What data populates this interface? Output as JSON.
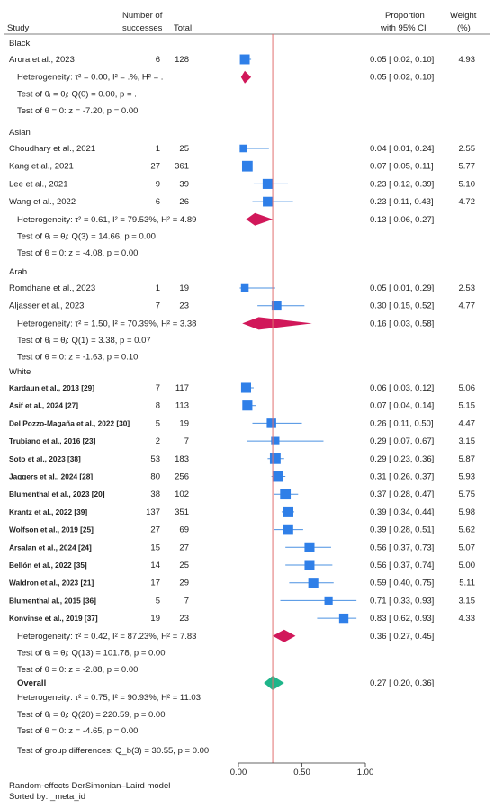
{
  "header": {
    "study": "Study",
    "successes_line1": "Number of",
    "successes_line2": "successes",
    "total": "Total",
    "ci_line1": "Proportion",
    "ci_line2": "with 95% CI",
    "weight_line1": "Weight",
    "weight_line2": "(%)"
  },
  "footer": {
    "model": "Random-effects DerSimonian–Laird model",
    "sorted": "Sorted by: _meta_id"
  },
  "colors": {
    "study_marker": "#2f7fe8",
    "subgroup_diamond": "#d1185a",
    "overall_diamond": "#1fb58a",
    "reference_line": "#e07070",
    "ci_line": "#4a90e2"
  },
  "chart_data": {
    "type": "forest",
    "xlim": [
      0,
      1
    ],
    "xticks": [
      "0.00",
      "0.50",
      "1.00"
    ],
    "reference_value": 0.27,
    "groups": [
      {
        "name": "Black",
        "studies": [
          {
            "label": "Arora et al., 2023",
            "bold": false,
            "successes": "6",
            "total": "128",
            "est": 0.05,
            "lo": 0.02,
            "hi": 0.1,
            "ci_text": "0.05 [ 0.02, 0.10]",
            "weight": "4.93"
          }
        ],
        "pooled": {
          "est": 0.05,
          "lo": 0.02,
          "hi": 0.1,
          "ci_text": "0.05 [ 0.02, 0.10]"
        },
        "heterogeneity": "Heterogeneity: τ² = 0.00, I² = .%, H² = .",
        "test1": "Test of θᵢ = θⱼ: Q(0) = 0.00, p = .",
        "test2": "Test of θ = 0: z = -7.20, p = 0.00"
      },
      {
        "name": "Asian",
        "studies": [
          {
            "label": "Choudhary et al., 2021",
            "bold": false,
            "successes": "1",
            "total": "25",
            "est": 0.04,
            "lo": 0.01,
            "hi": 0.24,
            "ci_text": "0.04 [ 0.01, 0.24]",
            "weight": "2.55"
          },
          {
            "label": "Kang et al., 2021",
            "bold": false,
            "successes": "27",
            "total": "361",
            "est": 0.07,
            "lo": 0.05,
            "hi": 0.11,
            "ci_text": "0.07 [ 0.05, 0.11]",
            "weight": "5.77"
          },
          {
            "label": "Lee et al., 2021",
            "bold": false,
            "successes": "9",
            "total": "39",
            "est": 0.23,
            "lo": 0.12,
            "hi": 0.39,
            "ci_text": "0.23 [ 0.12, 0.39]",
            "weight": "5.10"
          },
          {
            "label": "Wang et al., 2022",
            "bold": false,
            "successes": "6",
            "total": "26",
            "est": 0.23,
            "lo": 0.11,
            "hi": 0.43,
            "ci_text": "0.23 [ 0.11, 0.43]",
            "weight": "4.72"
          }
        ],
        "pooled": {
          "est": 0.13,
          "lo": 0.06,
          "hi": 0.27,
          "ci_text": "0.13 [ 0.06, 0.27]"
        },
        "heterogeneity": "Heterogeneity: τ² = 0.61, I² = 79.53%, H² = 4.89",
        "test1": "Test of θᵢ = θⱼ: Q(3) = 14.66, p = 0.00",
        "test2": "Test of θ = 0: z = -4.08, p = 0.00"
      },
      {
        "name": "Arab",
        "studies": [
          {
            "label": "Romdhane et al., 2023",
            "bold": false,
            "successes": "1",
            "total": "19",
            "est": 0.05,
            "lo": 0.01,
            "hi": 0.29,
            "ci_text": "0.05 [ 0.01, 0.29]",
            "weight": "2.53"
          },
          {
            "label": "Aljasser et al., 2023",
            "bold": false,
            "successes": "7",
            "total": "23",
            "est": 0.3,
            "lo": 0.15,
            "hi": 0.52,
            "ci_text": "0.30 [ 0.15, 0.52]",
            "weight": "4.77"
          }
        ],
        "pooled": {
          "est": 0.16,
          "lo": 0.03,
          "hi": 0.58,
          "ci_text": "0.16 [ 0.03, 0.58]"
        },
        "heterogeneity": "Heterogeneity: τ² = 1.50, I² = 70.39%, H² = 3.38",
        "test1": "Test of θᵢ = θⱼ: Q(1) = 3.38, p = 0.07",
        "test2": "Test of θ = 0: z = -1.63, p = 0.10"
      },
      {
        "name": "White",
        "studies": [
          {
            "label": "Kardaun et al., 2013 [29]",
            "bold": true,
            "successes": "7",
            "total": "117",
            "est": 0.06,
            "lo": 0.03,
            "hi": 0.12,
            "ci_text": "0.06 [ 0.03, 0.12]",
            "weight": "5.06"
          },
          {
            "label": "Asif et al., 2024 [27]",
            "bold": true,
            "successes": "8",
            "total": "113",
            "est": 0.07,
            "lo": 0.04,
            "hi": 0.14,
            "ci_text": "0.07 [ 0.04, 0.14]",
            "weight": "5.15"
          },
          {
            "label": "Del Pozzo-Magaña et al., 2022 [30]",
            "bold": true,
            "successes": "5",
            "total": "19",
            "est": 0.26,
            "lo": 0.11,
            "hi": 0.5,
            "ci_text": "0.26 [ 0.11, 0.50]",
            "weight": "4.47"
          },
          {
            "label": "Trubiano et al., 2016 [23]",
            "bold": true,
            "successes": "2",
            "total": "7",
            "est": 0.29,
            "lo": 0.07,
            "hi": 0.67,
            "ci_text": "0.29 [ 0.07, 0.67]",
            "weight": "3.15"
          },
          {
            "label": "Soto et al., 2023 [38]",
            "bold": true,
            "successes": "53",
            "total": "183",
            "est": 0.29,
            "lo": 0.23,
            "hi": 0.36,
            "ci_text": "0.29 [ 0.23, 0.36]",
            "weight": "5.87"
          },
          {
            "label": "Jaggers et al., 2024 [28]",
            "bold": true,
            "successes": "80",
            "total": "256",
            "est": 0.31,
            "lo": 0.26,
            "hi": 0.37,
            "ci_text": "0.31 [ 0.26, 0.37]",
            "weight": "5.93"
          },
          {
            "label": "Blumenthal et al., 2023 [20]",
            "bold": true,
            "successes": "38",
            "total": "102",
            "est": 0.37,
            "lo": 0.28,
            "hi": 0.47,
            "ci_text": "0.37 [ 0.28, 0.47]",
            "weight": "5.75"
          },
          {
            "label": "Krantz et al., 2022 [39]",
            "bold": true,
            "successes": "137",
            "total": "351",
            "est": 0.39,
            "lo": 0.34,
            "hi": 0.44,
            "ci_text": "0.39 [ 0.34, 0.44]",
            "weight": "5.98"
          },
          {
            "label": "Wolfson et al., 2019 [25]",
            "bold": true,
            "successes": "27",
            "total": "69",
            "est": 0.39,
            "lo": 0.28,
            "hi": 0.51,
            "ci_text": "0.39 [ 0.28, 0.51]",
            "weight": "5.62"
          },
          {
            "label": "Arsalan et al., 2024 [24]",
            "bold": true,
            "successes": "15",
            "total": "27",
            "est": 0.56,
            "lo": 0.37,
            "hi": 0.73,
            "ci_text": "0.56 [ 0.37, 0.73]",
            "weight": "5.07"
          },
          {
            "label": "Bellón et al., 2022 [35]",
            "bold": true,
            "successes": "14",
            "total": "25",
            "est": 0.56,
            "lo": 0.37,
            "hi": 0.74,
            "ci_text": "0.56 [ 0.37, 0.74]",
            "weight": "5.00"
          },
          {
            "label": "Waldron et al., 2023 [21]",
            "bold": true,
            "successes": "17",
            "total": "29",
            "est": 0.59,
            "lo": 0.4,
            "hi": 0.75,
            "ci_text": "0.59 [ 0.40, 0.75]",
            "weight": "5.11"
          },
          {
            "label": "Blumenthal al., 2015 [36]",
            "bold": true,
            "successes": "5",
            "total": "7",
            "est": 0.71,
            "lo": 0.33,
            "hi": 0.93,
            "ci_text": "0.71 [ 0.33, 0.93]",
            "weight": "3.15"
          },
          {
            "label": "Konvinse et al., 2019 [37]",
            "bold": true,
            "successes": "19",
            "total": "23",
            "est": 0.83,
            "lo": 0.62,
            "hi": 0.93,
            "ci_text": "0.83 [ 0.62, 0.93]",
            "weight": "4.33"
          }
        ],
        "pooled": {
          "est": 0.36,
          "lo": 0.27,
          "hi": 0.45,
          "ci_text": "0.36 [ 0.27, 0.45]"
        },
        "heterogeneity": "Heterogeneity: τ² = 0.42, I² = 87.23%, H² = 7.83",
        "test1": "Test of θᵢ = θⱼ: Q(13) = 101.78, p = 0.00",
        "test2": "Test of θ = 0: z = -2.88, p = 0.00"
      }
    ],
    "overall": {
      "label": "Overall",
      "est": 0.27,
      "lo": 0.2,
      "hi": 0.36,
      "ci_text": "0.27 [ 0.20, 0.36]",
      "heterogeneity": "Heterogeneity: τ² = 0.75, I² = 90.93%, H² = 11.03",
      "test1": "Test of θᵢ = θⱼ: Q(20) = 220.59, p = 0.00",
      "test2": "Test of θ = 0: z = -4.65, p = 0.00",
      "group_diff": "Test of group differences: Q_b(3) = 30.55, p = 0.00"
    }
  }
}
